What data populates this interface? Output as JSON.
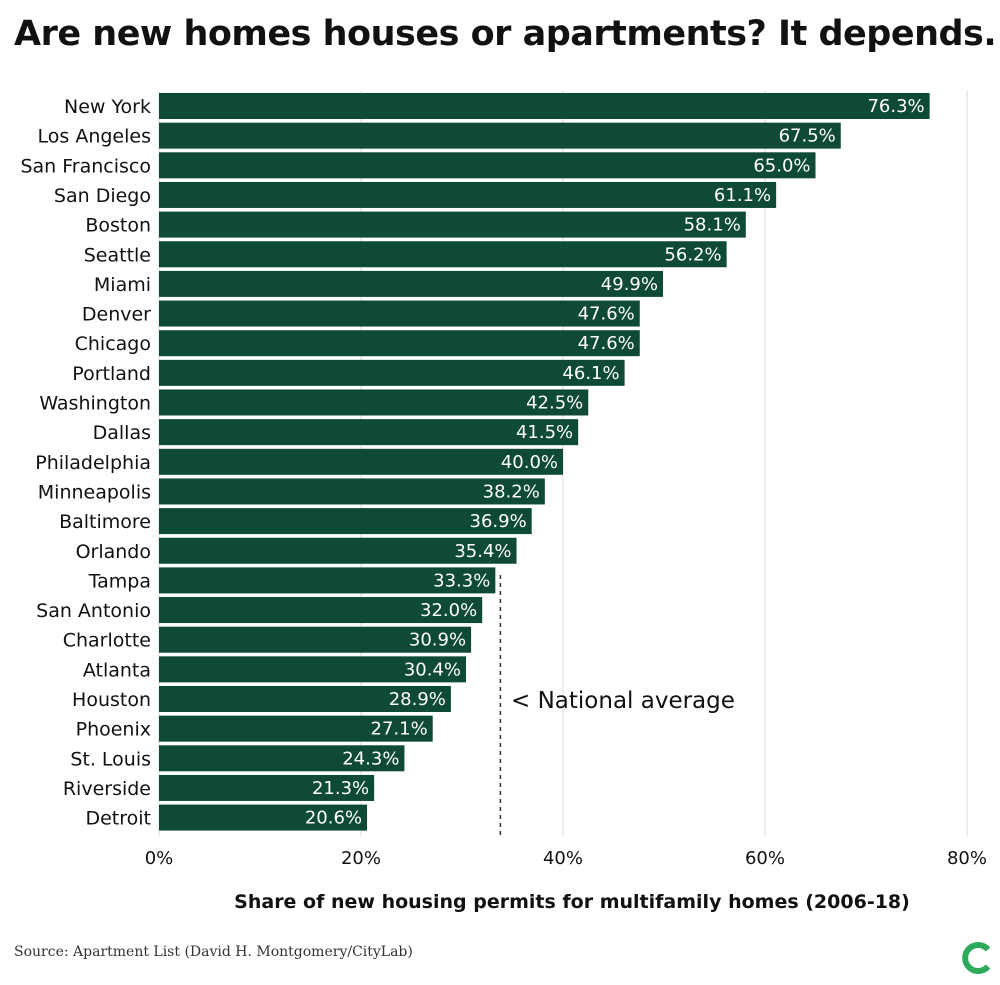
{
  "title": "Are new homes houses or apartments? It depends.",
  "source": "Source: Apartment List (David H. Montgomery/CityLab)",
  "logo_icon": "citylab-logo-icon",
  "colors": {
    "bar": "#0f4a39",
    "grid": "#d9d9d9",
    "logo": "#2eaa5c"
  },
  "chart_data": {
    "type": "bar",
    "orientation": "horizontal",
    "categories": [
      "New York",
      "Los Angeles",
      "San Francisco",
      "San Diego",
      "Boston",
      "Seattle",
      "Miami",
      "Denver",
      "Chicago",
      "Portland",
      "Washington",
      "Dallas",
      "Philadelphia",
      "Minneapolis",
      "Baltimore",
      "Orlando",
      "Tampa",
      "San Antonio",
      "Charlotte",
      "Atlanta",
      "Houston",
      "Phoenix",
      "St. Louis",
      "Riverside",
      "Detroit"
    ],
    "values": [
      76.3,
      67.5,
      65.0,
      61.1,
      58.1,
      56.2,
      49.9,
      47.6,
      47.6,
      46.1,
      42.5,
      41.5,
      40.0,
      38.2,
      36.9,
      35.4,
      33.3,
      32.0,
      30.9,
      30.4,
      28.9,
      27.1,
      24.3,
      21.3,
      20.6
    ],
    "value_labels": [
      "76.3%",
      "67.5%",
      "65.0%",
      "61.1%",
      "58.1%",
      "56.2%",
      "49.9%",
      "47.6%",
      "47.6%",
      "46.1%",
      "42.5%",
      "41.5%",
      "40.0%",
      "38.2%",
      "36.9%",
      "35.4%",
      "33.3%",
      "32.0%",
      "30.9%",
      "30.4%",
      "28.9%",
      "27.1%",
      "24.3%",
      "21.3%",
      "20.6%"
    ],
    "xlabel": "Share of new housing permits for multifamily homes (2006-18)",
    "xlim": [
      0,
      80
    ],
    "x_ticks": [
      0,
      20,
      40,
      60,
      80
    ],
    "x_tick_labels": [
      "0%",
      "20%",
      "40%",
      "60%",
      "80%"
    ],
    "grid": true,
    "reference_line": {
      "value": 33.8,
      "label": "< National average"
    }
  }
}
